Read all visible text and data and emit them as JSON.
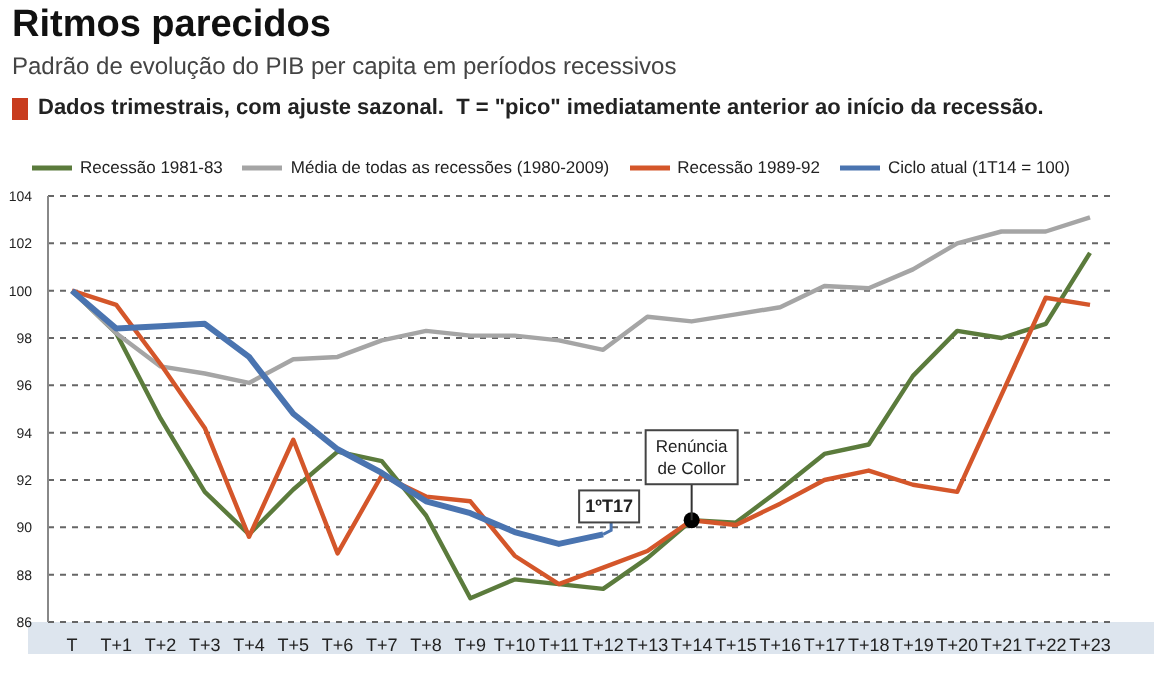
{
  "chart_data": {
    "type": "line",
    "title": "Ritmos parecidos",
    "subtitle": "Padrão de evolução do PIB per capita em períodos recessivos",
    "categories": [
      "T",
      "T+1",
      "T+2",
      "T+3",
      "T+4",
      "T+5",
      "T+6",
      "T+7",
      "T+8",
      "T+9",
      "T+10",
      "T+11",
      "T+12",
      "T+13",
      "T+14",
      "T+15",
      "T+16",
      "T+17",
      "T+18",
      "T+19",
      "T+20",
      "T+21",
      "T+22",
      "T+23"
    ],
    "series": [
      {
        "name": "Recessão 1981-83",
        "color": "#5b7b3c",
        "values": [
          100,
          98.2,
          94.6,
          91.5,
          89.7,
          91.6,
          93.2,
          92.8,
          90.5,
          87.0,
          87.8,
          87.6,
          87.4,
          88.7,
          90.3,
          90.2,
          91.6,
          93.1,
          93.5,
          96.4,
          98.3,
          98.0,
          98.6,
          101.6
        ]
      },
      {
        "name": "Média de todas as recessões (1980-2009)",
        "color": "#a5a5a5",
        "values": [
          100,
          98.2,
          96.8,
          96.5,
          96.1,
          97.1,
          97.2,
          97.9,
          98.3,
          98.1,
          98.1,
          97.9,
          97.5,
          98.9,
          98.7,
          99.0,
          99.3,
          100.2,
          100.1,
          100.9,
          102.0,
          102.5,
          102.5,
          103.1
        ]
      },
      {
        "name": "Recessão 1989-92",
        "color": "#d4562a",
        "values": [
          100,
          99.4,
          96.9,
          94.2,
          89.6,
          93.7,
          88.9,
          92.2,
          91.3,
          91.1,
          88.8,
          87.6,
          88.3,
          89.0,
          90.3,
          90.1,
          91.0,
          92.0,
          92.4,
          91.8,
          91.5,
          95.6,
          99.7,
          99.4
        ]
      },
      {
        "name": "Ciclo atual (1T14 = 100)",
        "color": "#4a74b0",
        "values": [
          100,
          98.4,
          98.5,
          98.6,
          97.2,
          94.8,
          93.3,
          92.3,
          91.1,
          90.6,
          89.8,
          89.3,
          89.7,
          null,
          null,
          null,
          null,
          null,
          null,
          null,
          null,
          null,
          null,
          null
        ]
      }
    ],
    "ylim": [
      86,
      104
    ],
    "yticks": [
      86,
      88,
      90,
      92,
      94,
      96,
      98,
      100,
      102,
      104
    ],
    "grid": "y",
    "legend": "top",
    "marker": "none",
    "line_style": "solid",
    "annotations": [
      "Dados trimestrais, com ajuste sazonal.  T = \"pico\" imediatamente anterior ao início da recessão.",
      {
        "text": "1ºT17",
        "x": "T+12",
        "y": 89.7
      },
      {
        "text": "Renúncia de Collor",
        "x": "T+14",
        "y": 90.3
      }
    ]
  }
}
